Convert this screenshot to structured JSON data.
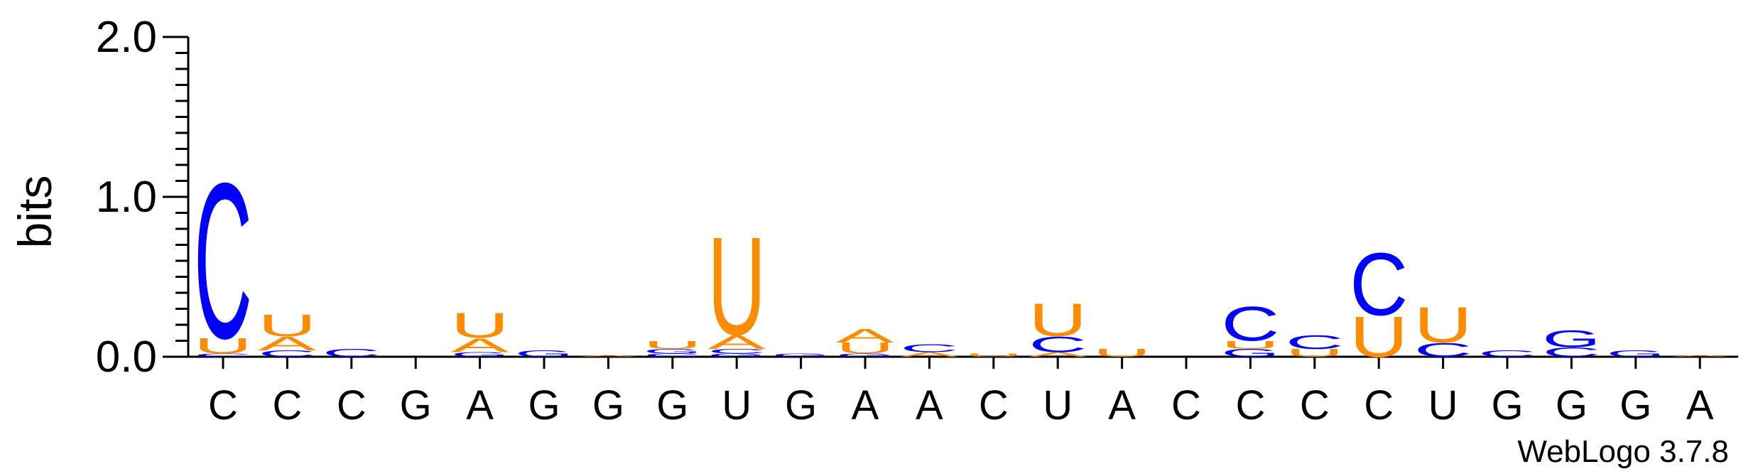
{
  "chart_data": {
    "type": "sequence-logo",
    "ylabel": "bits",
    "ylim": [
      0,
      2.0
    ],
    "yticks": [
      "0.0",
      "1.0",
      "2.0"
    ],
    "colors": {
      "C": "#0000ff",
      "U": "#ff8c00",
      "A": "#ff8c00",
      "G": "#0000ff"
    },
    "consensus": [
      "C",
      "C",
      "C",
      "G",
      "A",
      "G",
      "G",
      "G",
      "U",
      "G",
      "A",
      "A",
      "C",
      "U",
      "A",
      "C",
      "C",
      "C",
      "C",
      "U",
      "G",
      "G",
      "G",
      "A"
    ],
    "positions": [
      [
        {
          "l": "C",
          "b": 0.02
        },
        {
          "l": "U",
          "b": 0.1
        },
        {
          "l": "C",
          "b": 1.0
        }
      ],
      [
        {
          "l": "C",
          "b": 0.04
        },
        {
          "l": "A",
          "b": 0.09
        },
        {
          "l": "U",
          "b": 0.14
        }
      ],
      [
        {
          "l": "C",
          "b": 0.05
        }
      ],
      [],
      [
        {
          "l": "G",
          "b": 0.03
        },
        {
          "l": "A",
          "b": 0.09
        },
        {
          "l": "U",
          "b": 0.16
        }
      ],
      [
        {
          "l": "G",
          "b": 0.04
        }
      ],
      [
        {
          "l": "A",
          "b": 0.01
        }
      ],
      [
        {
          "l": "C",
          "b": 0.02
        },
        {
          "l": "G",
          "b": 0.03
        },
        {
          "l": "U",
          "b": 0.05
        }
      ],
      [
        {
          "l": "G",
          "b": 0.02
        },
        {
          "l": "C",
          "b": 0.03
        },
        {
          "l": "A",
          "b": 0.09
        },
        {
          "l": "U",
          "b": 0.63
        }
      ],
      [
        {
          "l": "G",
          "b": 0.02
        }
      ],
      [
        {
          "l": "G",
          "b": 0.02
        },
        {
          "l": "U",
          "b": 0.07
        },
        {
          "l": "A",
          "b": 0.09
        }
      ],
      [
        {
          "l": "A",
          "b": 0.03
        },
        {
          "l": "C",
          "b": 0.05
        }
      ],
      [
        {
          "l": "U",
          "b": 0.02
        }
      ],
      [
        {
          "l": "A",
          "b": 0.03
        },
        {
          "l": "C",
          "b": 0.1
        },
        {
          "l": "U",
          "b": 0.21
        }
      ],
      [
        {
          "l": "U",
          "b": 0.05
        }
      ],
      [],
      [
        {
          "l": "G",
          "b": 0.05
        },
        {
          "l": "U",
          "b": 0.05
        },
        {
          "l": "C",
          "b": 0.22
        }
      ],
      [
        {
          "l": "U",
          "b": 0.05
        },
        {
          "l": "C",
          "b": 0.09
        }
      ],
      [
        {
          "l": "U",
          "b": 0.26
        },
        {
          "l": "C",
          "b": 0.4
        }
      ],
      [
        {
          "l": "C",
          "b": 0.09
        },
        {
          "l": "U",
          "b": 0.23
        }
      ],
      [
        {
          "l": "C",
          "b": 0.04
        }
      ],
      [
        {
          "l": "C",
          "b": 0.06
        },
        {
          "l": "G",
          "b": 0.11
        }
      ],
      [
        {
          "l": "G",
          "b": 0.04
        }
      ],
      [
        {
          "l": "A",
          "b": 0.01
        }
      ]
    ],
    "footer": "WebLogo 3.7.8"
  }
}
